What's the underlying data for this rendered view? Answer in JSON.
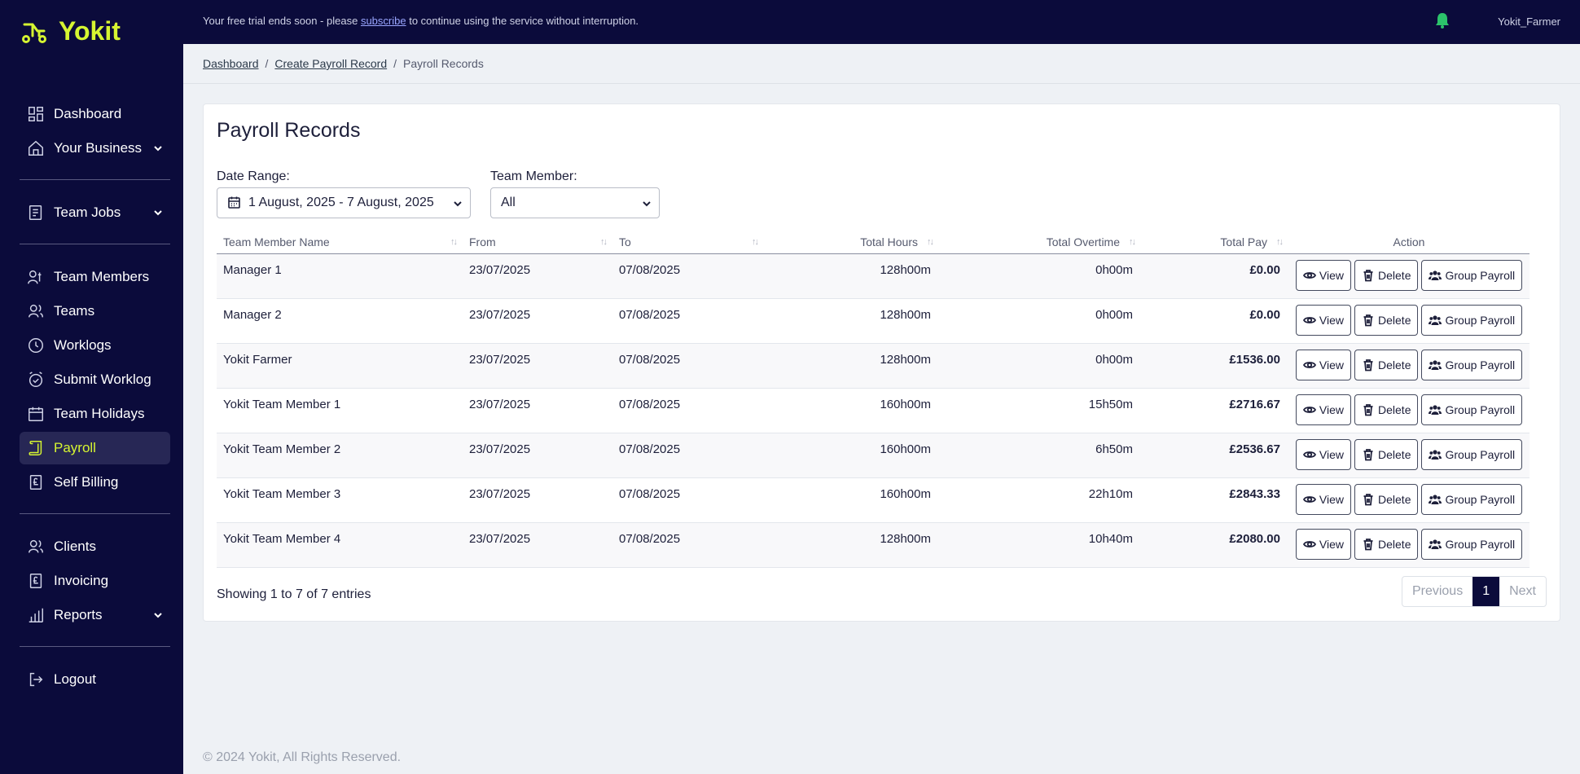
{
  "brand": {
    "name": "Yokit",
    "accent": "#d6f531",
    "navy": "#0b0b3b"
  },
  "topbar": {
    "trial_prefix": "Your free trial ends soon - please",
    "trial_link": "subscribe",
    "trial_suffix": "to continue using the service without interruption.",
    "user": "Yokit_Farmer"
  },
  "sidebar": {
    "items": [
      {
        "label": "Dashboard",
        "icon": "dashboard-icon"
      },
      {
        "label": "Your Business",
        "icon": "home-icon",
        "expandable": true
      },
      {
        "label": "Team Jobs",
        "icon": "clipboard-icon",
        "expandable": true
      },
      {
        "label": "Team Members",
        "icon": "team-members-icon"
      },
      {
        "label": "Teams",
        "icon": "teams-icon"
      },
      {
        "label": "Worklogs",
        "icon": "clock-icon"
      },
      {
        "label": "Submit Worklog",
        "icon": "alarm-check-icon"
      },
      {
        "label": "Team Holidays",
        "icon": "calendar-icon"
      },
      {
        "label": "Payroll",
        "icon": "scroll-icon",
        "active": true
      },
      {
        "label": "Self Billing",
        "icon": "pound-doc-icon"
      },
      {
        "label": "Clients",
        "icon": "users-icon"
      },
      {
        "label": "Invoicing",
        "icon": "pound-doc-icon"
      },
      {
        "label": "Reports",
        "icon": "bar-chart-icon",
        "expandable": true
      },
      {
        "label": "Logout",
        "icon": "logout-icon"
      }
    ]
  },
  "breadcrumb": {
    "home": "Dashboard",
    "sep": "/",
    "parent": "Create Payroll Record",
    "current": "Payroll Records"
  },
  "page": {
    "title": "Payroll Records",
    "date_range_label": "Date Range:",
    "date_range_value": "1 August, 2025 - 7 August, 2025",
    "team_member_label": "Team Member:",
    "team_member_value": "All"
  },
  "table": {
    "headers": [
      "Team Member Name",
      "From",
      "To",
      "Total Hours",
      "Total Overtime",
      "Total Pay",
      "Action"
    ],
    "sort_glyph": "↑↓",
    "rows": [
      {
        "name": "Manager 1",
        "from": "23/07/2025",
        "to": "07/08/2025",
        "hours": "128h00m",
        "overtime": "0h00m",
        "pay": "£0.00"
      },
      {
        "name": "Manager 2",
        "from": "23/07/2025",
        "to": "07/08/2025",
        "hours": "128h00m",
        "overtime": "0h00m",
        "pay": "£0.00"
      },
      {
        "name": "Yokit Farmer",
        "from": "23/07/2025",
        "to": "07/08/2025",
        "hours": "128h00m",
        "overtime": "0h00m",
        "pay": "£1536.00"
      },
      {
        "name": "Yokit Team Member 1",
        "from": "23/07/2025",
        "to": "07/08/2025",
        "hours": "160h00m",
        "overtime": "15h50m",
        "pay": "£2716.67"
      },
      {
        "name": "Yokit Team Member 2",
        "from": "23/07/2025",
        "to": "07/08/2025",
        "hours": "160h00m",
        "overtime": "6h50m",
        "pay": "£2536.67"
      },
      {
        "name": "Yokit Team Member 3",
        "from": "23/07/2025",
        "to": "07/08/2025",
        "hours": "160h00m",
        "overtime": "22h10m",
        "pay": "£2843.33"
      },
      {
        "name": "Yokit Team Member 4",
        "from": "23/07/2025",
        "to": "07/08/2025",
        "hours": "128h00m",
        "overtime": "10h40m",
        "pay": "£2080.00"
      }
    ],
    "actions": {
      "view": "View",
      "delete": "Delete",
      "group": "Group Payroll"
    }
  },
  "pagination": {
    "info": "Showing 1 to 7 of 7 entries",
    "previous": "Previous",
    "current": "1",
    "next": "Next"
  },
  "footer": {
    "text": "© 2024 Yokit, All Rights Reserved."
  }
}
